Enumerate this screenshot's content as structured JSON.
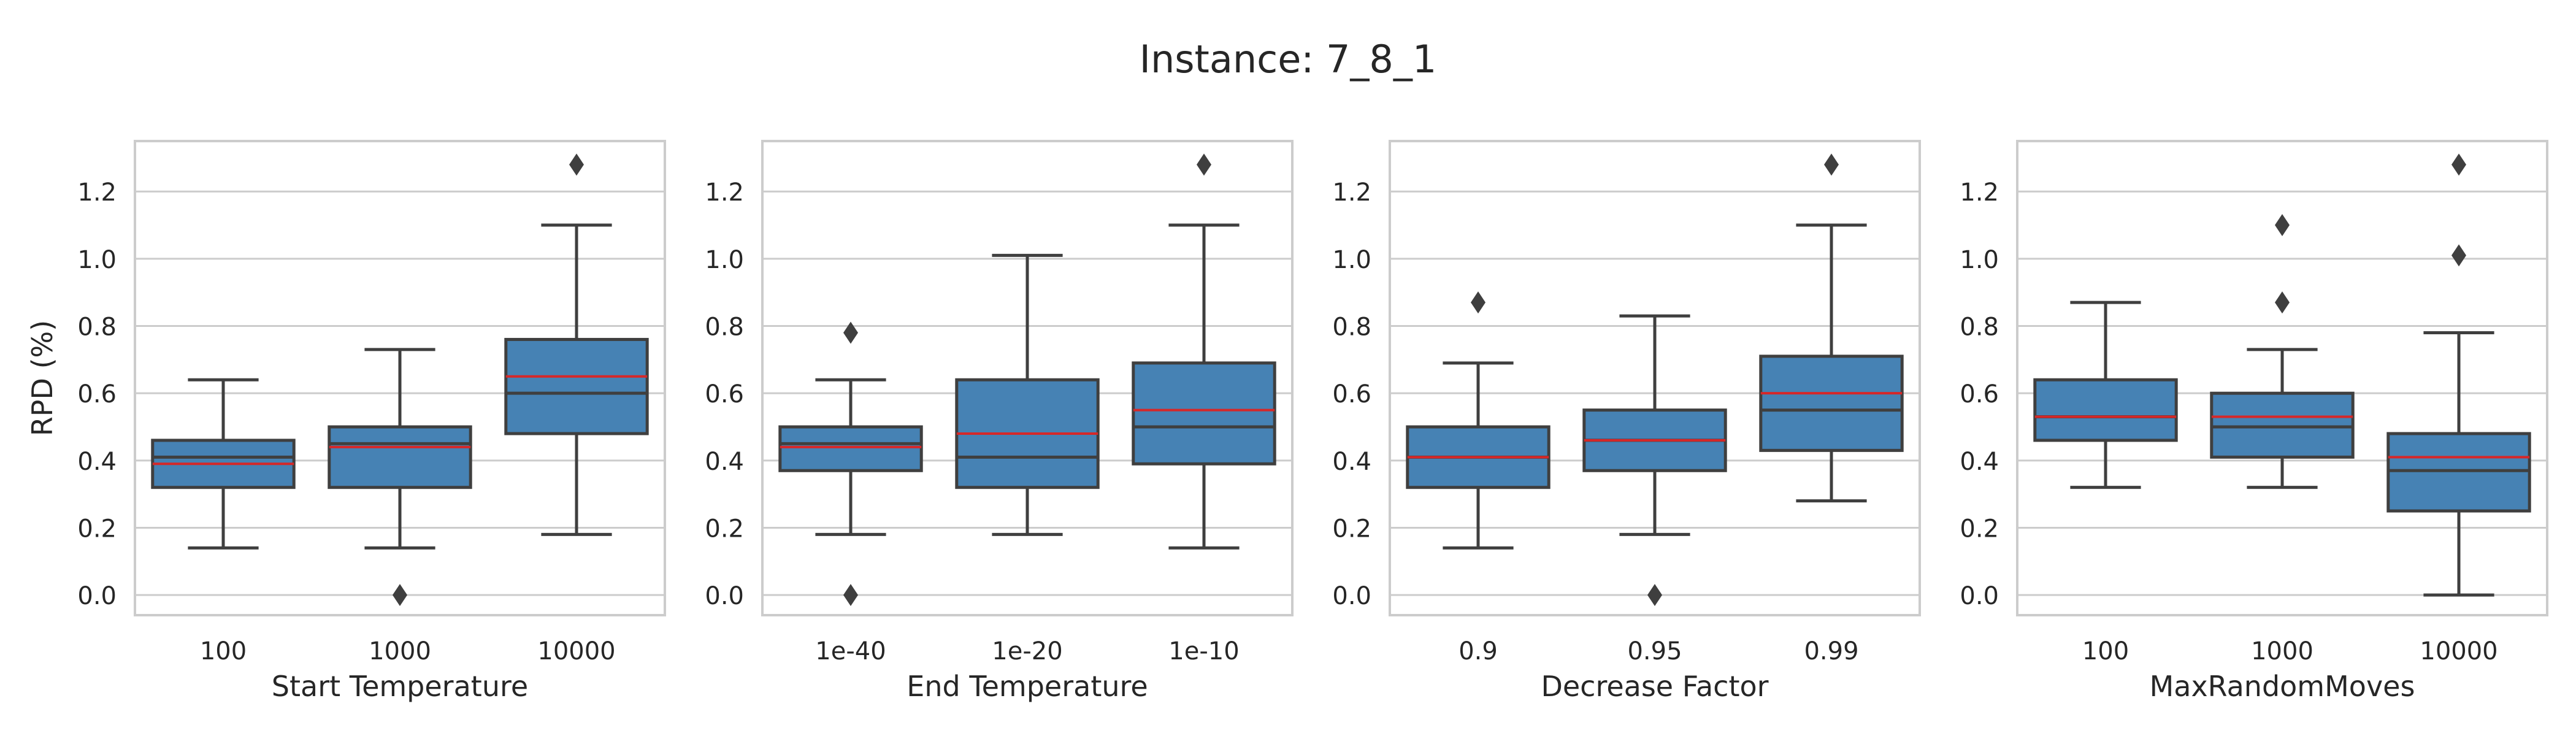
{
  "figure": {
    "title": "Instance: 7_8_1"
  },
  "style": {
    "box_fill": "#4682b4",
    "box_edge": "#3f3f3f",
    "median_color": "#3f3f3f",
    "mean_color": "#d62728",
    "grid_color": "#cccccc",
    "frame_color": "#cccccc"
  },
  "chart_data": [
    {
      "type": "box",
      "xlabel": "Start Temperature",
      "ylabel": "RPD (%)",
      "ylim": [
        -0.06,
        1.35
      ],
      "yticks": [
        "0.0",
        "0.2",
        "0.4",
        "0.6",
        "0.8",
        "1.0",
        "1.2"
      ],
      "categories": [
        "100",
        "1000",
        "10000"
      ],
      "boxes": [
        {
          "whisker_low": 0.14,
          "q1": 0.32,
          "median": 0.41,
          "mean": 0.39,
          "q3": 0.46,
          "whisker_high": 0.64,
          "outliers": []
        },
        {
          "whisker_low": 0.14,
          "q1": 0.32,
          "median": 0.45,
          "mean": 0.44,
          "q3": 0.5,
          "whisker_high": 0.73,
          "outliers": [
            0.0
          ]
        },
        {
          "whisker_low": 0.18,
          "q1": 0.48,
          "median": 0.6,
          "mean": 0.65,
          "q3": 0.76,
          "whisker_high": 1.1,
          "outliers": [
            1.28
          ]
        }
      ]
    },
    {
      "type": "box",
      "xlabel": "End Temperature",
      "ylabel": "",
      "ylim": [
        -0.06,
        1.35
      ],
      "yticks": [
        "0.0",
        "0.2",
        "0.4",
        "0.6",
        "0.8",
        "1.0",
        "1.2"
      ],
      "categories": [
        "1e-40",
        "1e-20",
        "1e-10"
      ],
      "boxes": [
        {
          "whisker_low": 0.18,
          "q1": 0.37,
          "median": 0.45,
          "mean": 0.44,
          "q3": 0.5,
          "whisker_high": 0.64,
          "outliers": [
            0.78,
            0.0
          ]
        },
        {
          "whisker_low": 0.18,
          "q1": 0.32,
          "median": 0.41,
          "mean": 0.48,
          "q3": 0.64,
          "whisker_high": 1.01,
          "outliers": []
        },
        {
          "whisker_low": 0.14,
          "q1": 0.39,
          "median": 0.5,
          "mean": 0.55,
          "q3": 0.69,
          "whisker_high": 1.1,
          "outliers": [
            1.28
          ]
        }
      ]
    },
    {
      "type": "box",
      "xlabel": "Decrease Factor",
      "ylabel": "",
      "ylim": [
        -0.06,
        1.35
      ],
      "yticks": [
        "0.0",
        "0.2",
        "0.4",
        "0.6",
        "0.8",
        "1.0",
        "1.2"
      ],
      "categories": [
        "0.9",
        "0.95",
        "0.99"
      ],
      "boxes": [
        {
          "whisker_low": 0.14,
          "q1": 0.32,
          "median": 0.41,
          "mean": 0.41,
          "q3": 0.5,
          "whisker_high": 0.69,
          "outliers": [
            0.87
          ]
        },
        {
          "whisker_low": 0.18,
          "q1": 0.37,
          "median": 0.46,
          "mean": 0.46,
          "q3": 0.55,
          "whisker_high": 0.83,
          "outliers": [
            0.0
          ]
        },
        {
          "whisker_low": 0.28,
          "q1": 0.43,
          "median": 0.55,
          "mean": 0.6,
          "q3": 0.71,
          "whisker_high": 1.1,
          "outliers": [
            1.28
          ]
        }
      ]
    },
    {
      "type": "box",
      "xlabel": "MaxRandomMoves",
      "ylabel": "",
      "ylim": [
        -0.06,
        1.35
      ],
      "yticks": [
        "0.0",
        "0.2",
        "0.4",
        "0.6",
        "0.8",
        "1.0",
        "1.2"
      ],
      "categories": [
        "100",
        "1000",
        "10000"
      ],
      "boxes": [
        {
          "whisker_low": 0.32,
          "q1": 0.46,
          "median": 0.53,
          "mean": 0.53,
          "q3": 0.64,
          "whisker_high": 0.87,
          "outliers": []
        },
        {
          "whisker_low": 0.32,
          "q1": 0.41,
          "median": 0.5,
          "mean": 0.53,
          "q3": 0.6,
          "whisker_high": 0.73,
          "outliers": [
            1.1,
            0.87
          ]
        },
        {
          "whisker_low": 0.0,
          "q1": 0.25,
          "median": 0.37,
          "mean": 0.41,
          "q3": 0.48,
          "whisker_high": 0.78,
          "outliers": [
            1.28,
            1.01
          ]
        }
      ]
    }
  ]
}
